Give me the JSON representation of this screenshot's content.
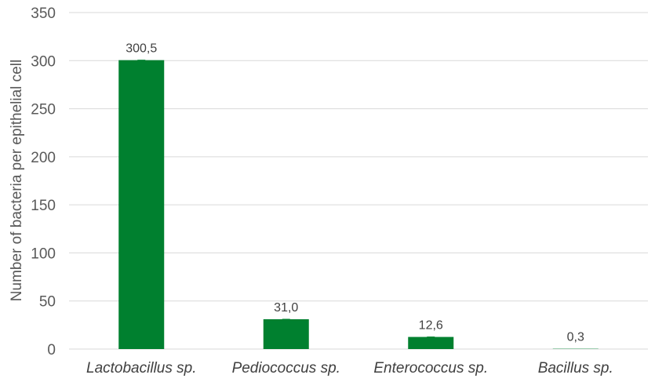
{
  "chart_data": {
    "type": "bar",
    "categories": [
      "Lactobacillus sp.",
      "Pediococcus sp.",
      "Enterococcus sp.",
      "Bacillus sp."
    ],
    "values": [
      300.5,
      31.0,
      12.6,
      0.3
    ],
    "data_labels": [
      "300,5",
      "31,0",
      "12,6",
      "0,3"
    ],
    "title": "",
    "xlabel": "",
    "ylabel": "Number of bacteria per epithelial cell",
    "ylim": [
      0,
      350
    ],
    "yticks": [
      0,
      50,
      100,
      150,
      200,
      250,
      300,
      350
    ],
    "ytick_labels": [
      "0",
      "50",
      "100",
      "150",
      "200",
      "250",
      "300",
      "350"
    ],
    "grid": true,
    "legend": "none",
    "bar_color": "#00802f",
    "error_bars": true
  }
}
